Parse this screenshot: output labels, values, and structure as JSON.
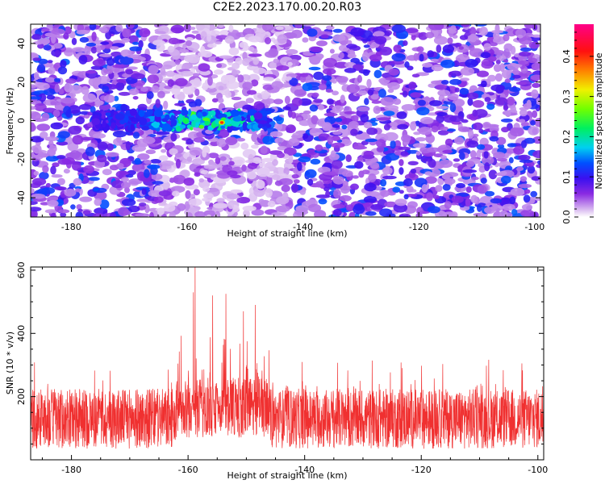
{
  "title": "C2E2.2023.170.00.20.R03",
  "colors": {
    "snr_line": "#f03030",
    "frame": "#000000",
    "background": "#ffffff"
  },
  "chart_data": [
    {
      "type": "heatmap",
      "title": "",
      "xlabel": "Height of straight line (km)",
      "ylabel": "Frequency (Hz)",
      "xlim": [
        -187,
        -99
      ],
      "ylim": [
        -50,
        50
      ],
      "xticks": [
        -180,
        -160,
        -140,
        -120,
        -100
      ],
      "xtick_labels": [
        "-180",
        "-160",
        "-140",
        "-120",
        "-100"
      ],
      "yticks": [
        -40,
        -20,
        0,
        20,
        40
      ],
      "ytick_labels": [
        "-40",
        "-20",
        "0",
        "20",
        "40"
      ],
      "colorbar": {
        "label": "Normalized spectral amplitude",
        "range": [
          0,
          0.48
        ],
        "ticks": [
          0.0,
          0.1,
          0.2,
          0.3,
          0.4
        ],
        "tick_labels": [
          "0.0",
          "0.1",
          "0.2",
          "0.3",
          "0.4"
        ],
        "colormap": "rainbow (white-purple-blue-cyan-green-yellow-red-magenta)"
      },
      "features": {
        "strong_band_center_frequency_hz": 0,
        "strong_band_height_range_km": [
          -176,
          -146
        ],
        "peak_height_km": -154,
        "peak_frequency_hz": -1,
        "peak_amplitude": 0.4
      }
    },
    {
      "type": "line",
      "title": "",
      "xlabel": "Height of straight line (km)",
      "ylabel": "SNR (10 * v/v)",
      "xlim": [
        -187,
        -99
      ],
      "ylim": [
        0,
        610
      ],
      "xticks": [
        -180,
        -160,
        -140,
        -120,
        -100
      ],
      "xtick_labels": [
        "-180",
        "-160",
        "-140",
        "-120",
        "-100"
      ],
      "yticks": [
        200,
        400,
        600
      ],
      "ytick_labels": [
        "200",
        "400",
        "600"
      ],
      "series": [
        {
          "values_summary": {
            "baseline_mean": 130,
            "typical_max": 290,
            "enhanced_region_km": [
              -162,
              -146
            ],
            "peaks": [
              {
                "x": -158.8,
                "y": 610
              },
              {
                "x": -159.1,
                "y": 530
              },
              {
                "x": -155.8,
                "y": 520
              },
              {
                "x": -153.5,
                "y": 525
              },
              {
                "x": -148.5,
                "y": 490
              },
              {
                "x": -150.5,
                "y": 470
              }
            ]
          }
        }
      ]
    }
  ]
}
